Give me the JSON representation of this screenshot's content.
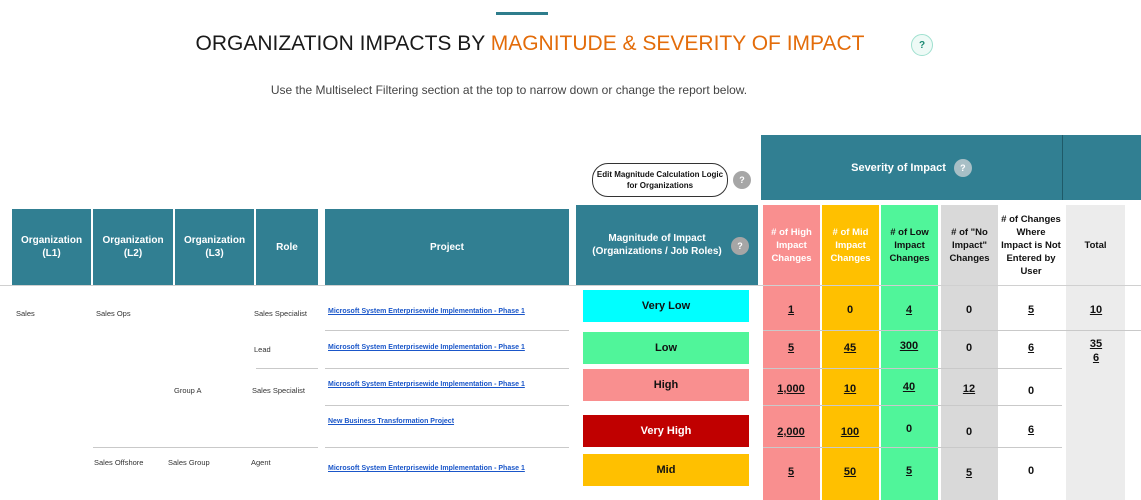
{
  "header": {
    "title_prefix": "ORGANIZATION IMPACTS BY ",
    "title_accent": "MAGNITUDE & SEVERITY OF IMPACT",
    "help_label": "?",
    "subtitle": "Use the Multiselect Filtering section at the top to narrow down or change the report below."
  },
  "controls": {
    "edit_button_label": "Edit Magnitude Calculation Logic for Organizations",
    "help_label": "?"
  },
  "severity_banner": {
    "label": "Severity of Impact",
    "help_label": "?"
  },
  "columns": {
    "org_l1": "Organization (L1)",
    "org_l2": "Organization (L2)",
    "org_l3": "Organization (L3)",
    "role": "Role",
    "project": "Project",
    "magnitude": "Magnitude of Impact (Organizations / Job Roles)",
    "high": "# of High Impact Changes",
    "mid": "# of Mid Impact Changes",
    "low": "# of Low Impact Changes",
    "no_impact": "# of \"No Impact\" Changes",
    "not_entered": "# of Changes Where Impact is Not Entered by User",
    "total": "Total"
  },
  "colors": {
    "header_teal": "#317f92",
    "high": "#f98f8f",
    "mid": "#ffc000",
    "low": "#50f59a",
    "no_impact": "#d9d9d9",
    "very_low": "#00ffff",
    "very_high": "#c00000",
    "title_accent": "#e36c0a",
    "link": "#1a56c9"
  },
  "rows": [
    {
      "l1": "Sales",
      "l2": "Sales Ops",
      "l3": "",
      "role": "Sales Specialist",
      "project": "Microsoft System Enterprisewide Implementation - Phase 1",
      "magnitude": "Very Low",
      "high": "1",
      "mid": "0",
      "low": "4",
      "no_impact": "0",
      "not_entered": "5",
      "total": "10"
    },
    {
      "l1": "",
      "l2": "",
      "l3": "",
      "role": "Lead",
      "project": "Microsoft System Enterprisewide Implementation - Phase 1",
      "magnitude": "Low",
      "high": "5",
      "mid": "45",
      "low": "300",
      "no_impact": "0",
      "not_entered": "6",
      "total": "35",
      "total_wrap": "6"
    },
    {
      "l1": "",
      "l2": "",
      "l3": "Group A",
      "role": "Sales Specialist",
      "project": "Microsoft System Enterprisewide Implementation - Phase 1",
      "magnitude": "High",
      "high": "1,000",
      "mid": "10",
      "low": "40",
      "no_impact": "12",
      "not_entered": "0",
      "total": ""
    },
    {
      "l1": "",
      "l2": "",
      "l3": "",
      "role": "",
      "project": "New Business Transformation Project",
      "magnitude": "Very High",
      "high": "2,000",
      "mid": "100",
      "low": "0",
      "no_impact": "0",
      "not_entered": "6",
      "total": ""
    },
    {
      "l1": "",
      "l2": "Sales Offshore",
      "l3": "Sales Group",
      "role": "Agent",
      "project": "Microsoft System Enterprisewide Implementation - Phase 1",
      "magnitude": "Mid",
      "high": "5",
      "mid": "50",
      "low": "5",
      "no_impact": "5",
      "not_entered": "0",
      "total": ""
    }
  ]
}
